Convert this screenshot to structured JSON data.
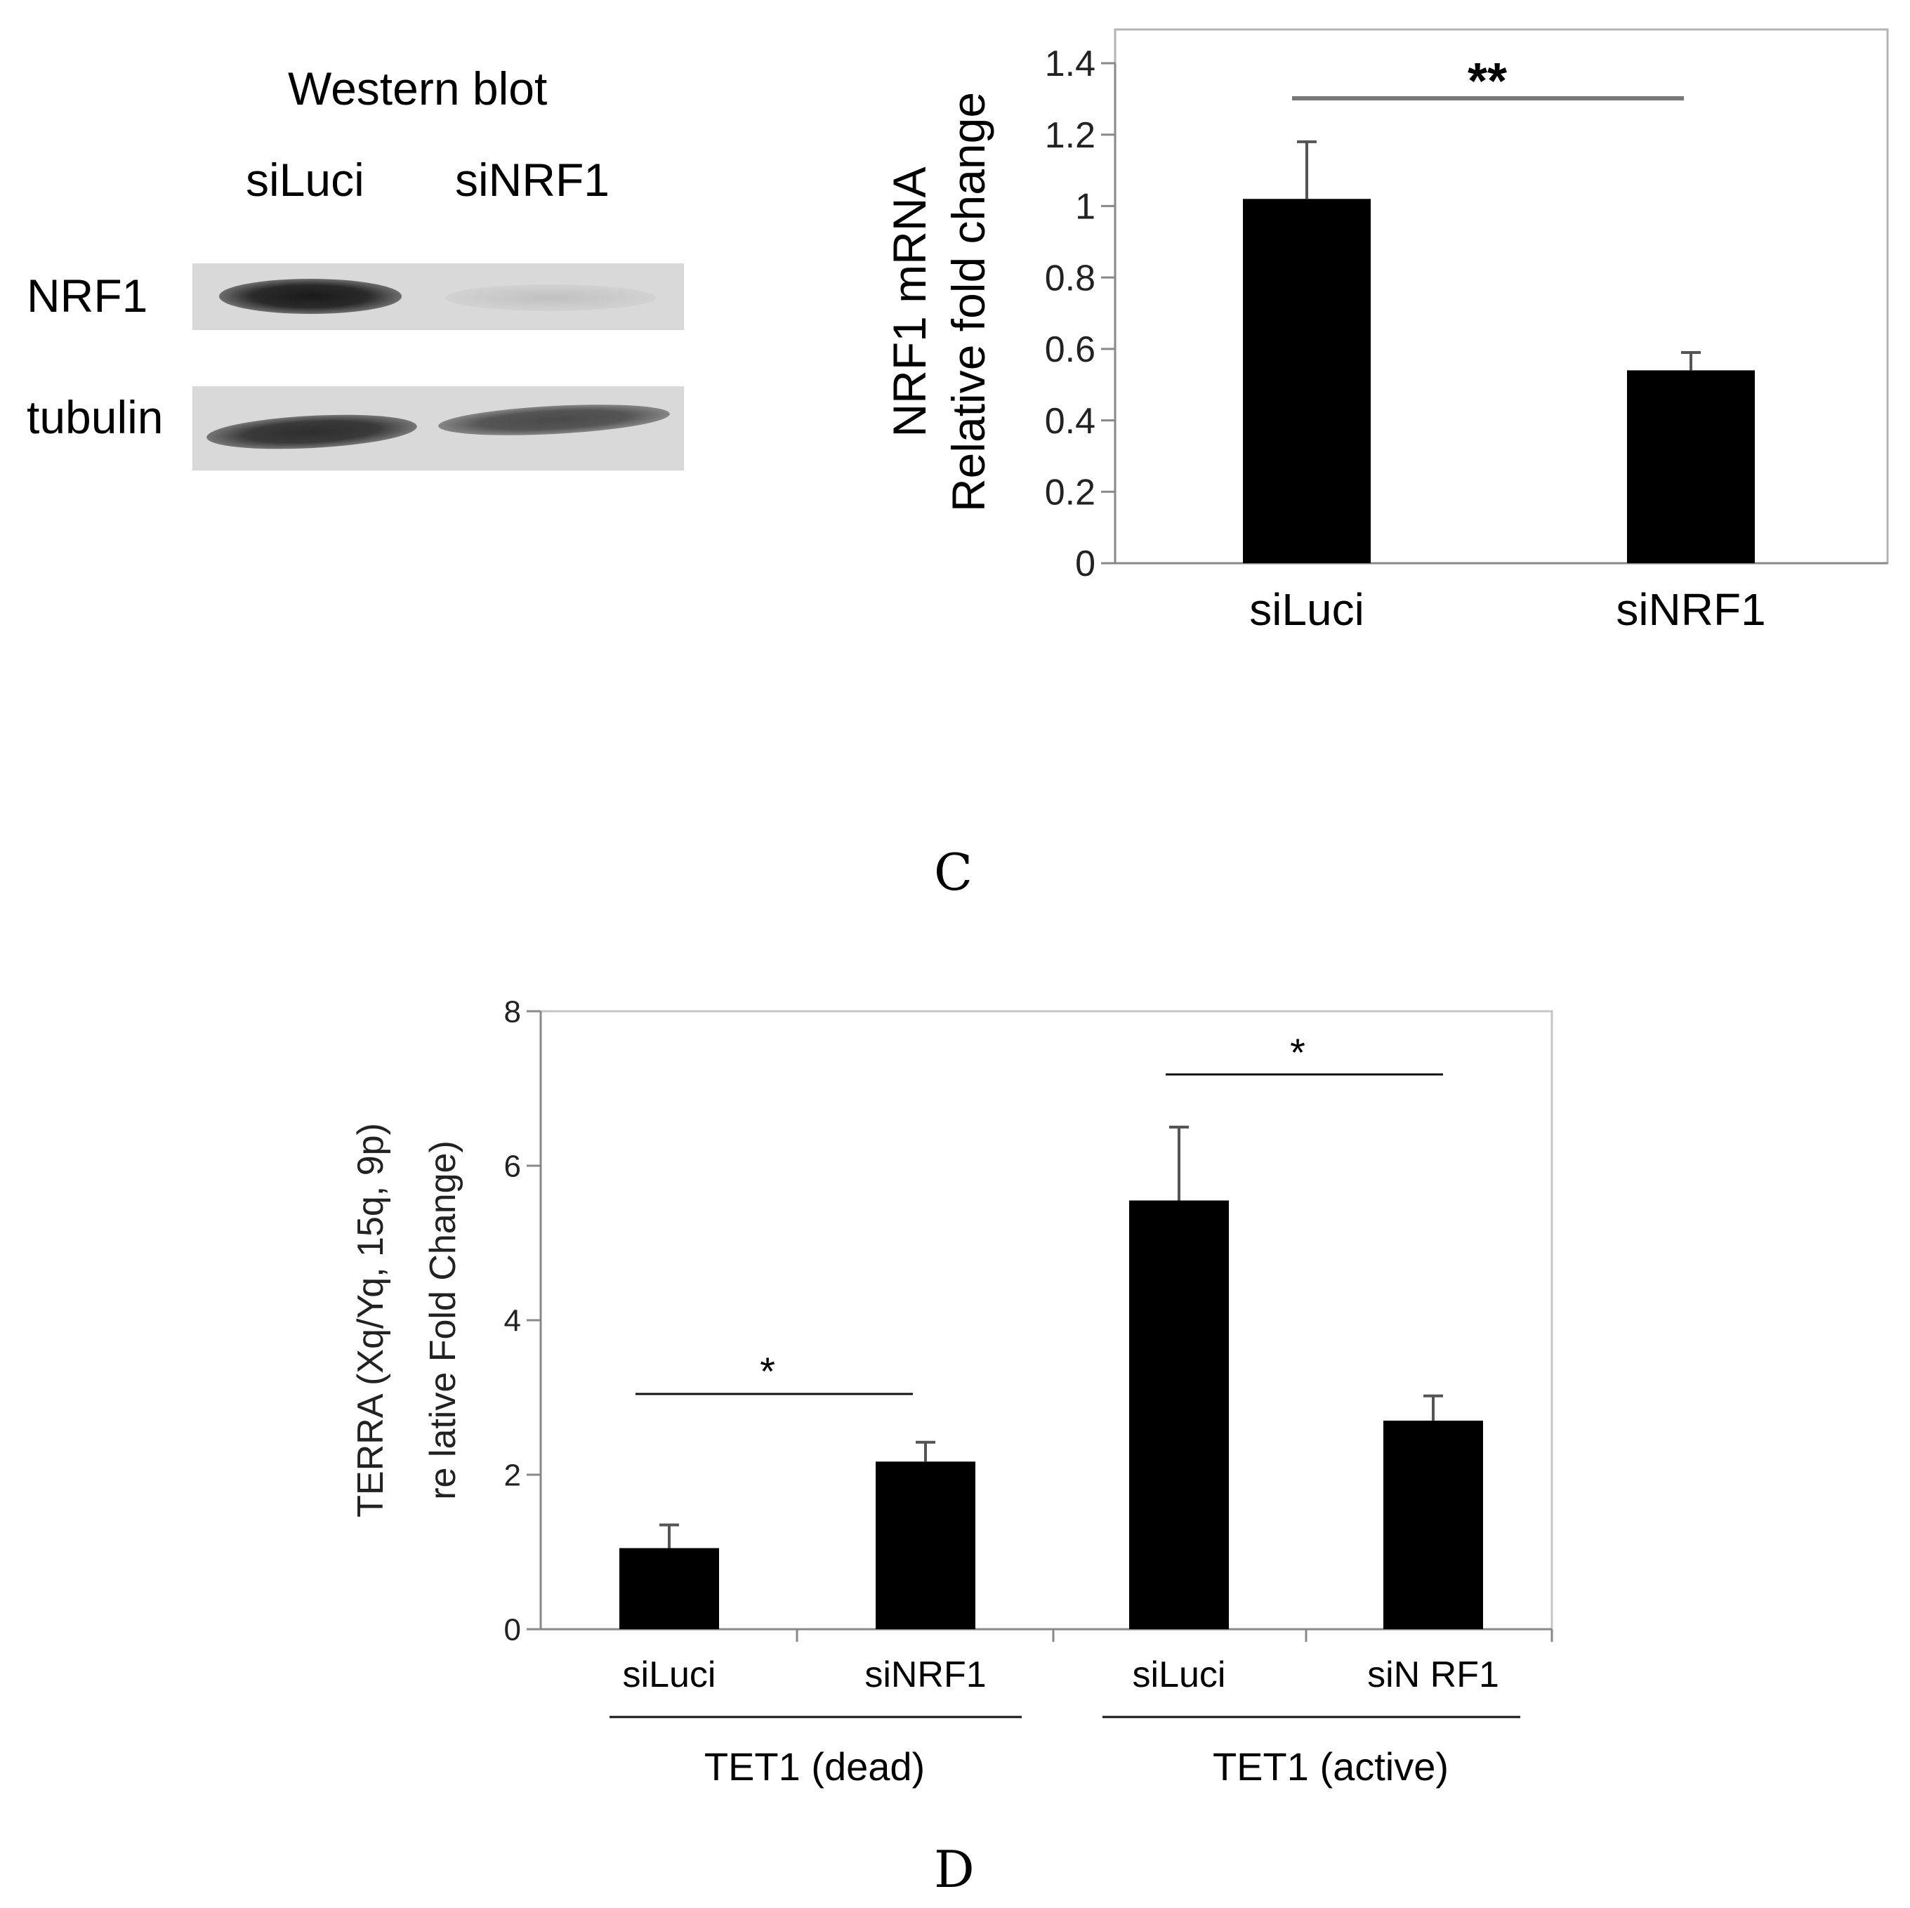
{
  "western_blot": {
    "title": "Western blot",
    "lanes": [
      "siLuci",
      "siNRF1"
    ],
    "rows": [
      "NRF1",
      "tubulin"
    ]
  },
  "panel_c_label": "C",
  "panel_d_label": "D",
  "chart_data": [
    {
      "type": "bar",
      "categories": [
        "siLuci",
        "siNRF1"
      ],
      "values": [
        1.02,
        0.54
      ],
      "errors": [
        0.16,
        0.05
      ],
      "ylabel": "NRF1 mRNA\nRelative fold change",
      "ylim": [
        0,
        1.4
      ],
      "yticks": [
        "0",
        "0.2",
        "0.4",
        "0.6",
        "0.8",
        "1",
        "1.2",
        "1.4"
      ],
      "significance": [
        {
          "between": [
            "siLuci",
            "siNRF1"
          ],
          "label": "**"
        }
      ],
      "bar_color": "#000000",
      "grid": false
    },
    {
      "type": "bar",
      "groups": [
        "TET1 (dead)",
        "TET1 (active)"
      ],
      "categories": [
        "siLuci",
        "siNRF1",
        "siLuci",
        "siNRF1"
      ],
      "category_labels": [
        "siLuci",
        "siNRF1",
        "siLuci",
        "siN RF1"
      ],
      "values": [
        1.05,
        2.17,
        5.55,
        2.7
      ],
      "errors": [
        0.3,
        0.25,
        0.95,
        0.32
      ],
      "ylabel": "TERRA (Xq/Yq, 15q, 9p)\nre lative Fold Change)",
      "ylim": [
        0,
        8
      ],
      "yticks": [
        "0",
        "2",
        "4",
        "6",
        "8"
      ],
      "significance": [
        {
          "between": [
            "TET1 (dead) siLuci",
            "TET1 (dead) siNRF1"
          ],
          "label": "*"
        },
        {
          "between": [
            "TET1 (active) siLuci",
            "TET1 (active) siNRF1"
          ],
          "label": "*"
        }
      ],
      "bar_color": "#000000",
      "grid": false
    }
  ]
}
